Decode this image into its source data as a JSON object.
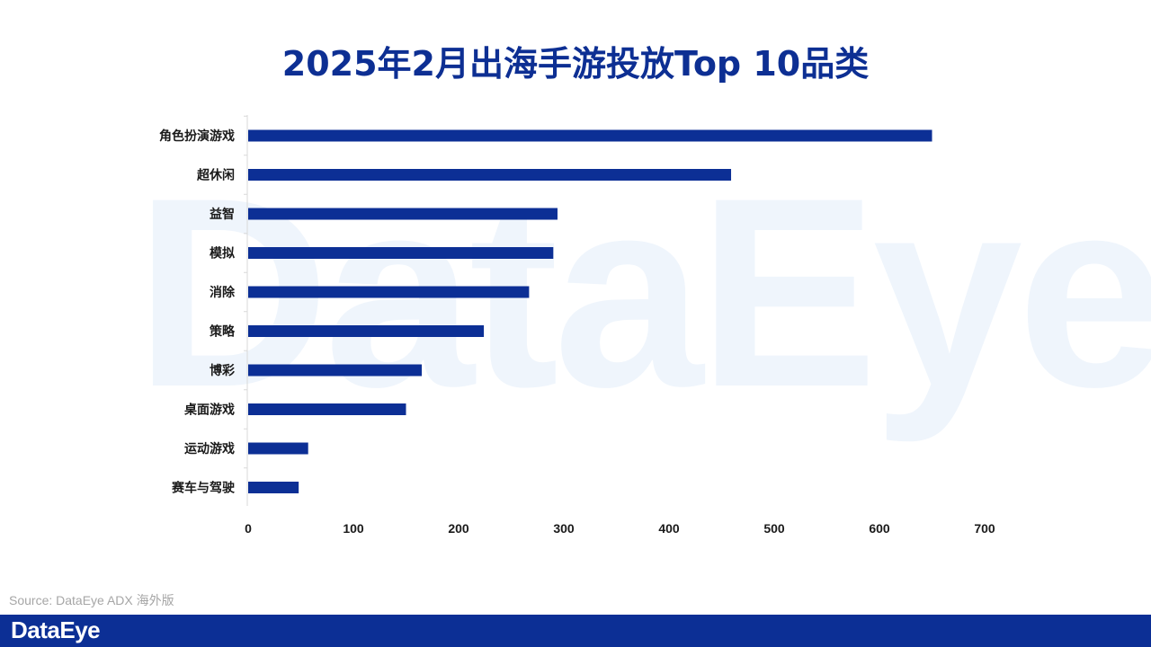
{
  "watermark": "DataEye",
  "title": "2025年2月出海手游投放Top 10品类",
  "source": "Source: DataEye ADX 海外版",
  "footer": {
    "logo": "DataEye"
  },
  "colors": {
    "bar": "#0c2f95",
    "title": "#0d2f93",
    "footer": "#0c2f95",
    "axis": "#d9d9d9"
  },
  "chart_data": {
    "type": "bar",
    "orientation": "horizontal",
    "title": "2025年2月出海手游投放Top 10品类",
    "xlabel": "",
    "ylabel": "",
    "xlim": [
      0,
      700
    ],
    "xticks": [
      0,
      100,
      200,
      300,
      400,
      500,
      600,
      700
    ],
    "grid": false,
    "legend": "none",
    "categories": [
      "角色扮演游戏",
      "超休闲",
      "益智",
      "模拟",
      "消除",
      "策略",
      "博彩",
      "桌面游戏",
      "运动游戏",
      "赛车与驾驶"
    ],
    "values": [
      650,
      459,
      294,
      290,
      267,
      224,
      165,
      150,
      57,
      48
    ]
  }
}
